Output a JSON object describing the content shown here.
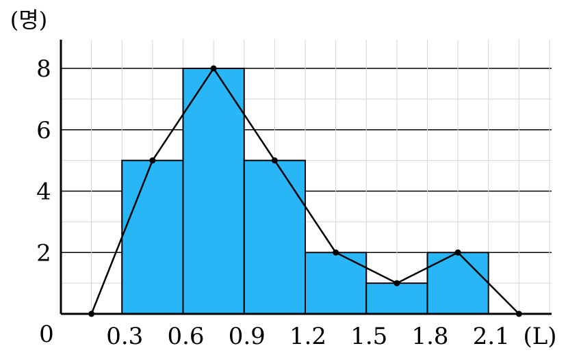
{
  "chart_data": {
    "type": "bar",
    "title": "",
    "ylabel": "(명)",
    "xlabel": "(L)",
    "origin_label": "0",
    "bin_edges": [
      0.3,
      0.6,
      0.9,
      1.2,
      1.5,
      1.8,
      2.1
    ],
    "bin_edge_labels": [
      "0.3",
      "0.6",
      "0.9",
      "1.2",
      "1.5",
      "1.8",
      "2.1"
    ],
    "values": [
      5,
      8,
      5,
      2,
      1,
      2
    ],
    "polygon_points": [
      {
        "x": 0.15,
        "y": 0
      },
      {
        "x": 0.45,
        "y": 5
      },
      {
        "x": 0.75,
        "y": 8
      },
      {
        "x": 1.05,
        "y": 5
      },
      {
        "x": 1.35,
        "y": 2
      },
      {
        "x": 1.65,
        "y": 1
      },
      {
        "x": 1.95,
        "y": 2
      },
      {
        "x": 2.25,
        "y": 0
      }
    ],
    "yticks": [
      2,
      4,
      6,
      8
    ],
    "ytick_labels": [
      "2",
      "4",
      "6",
      "8"
    ],
    "ylim": [
      0,
      8.5
    ],
    "xlim": [
      0,
      2.4
    ],
    "grid": true,
    "bar_color": "#29b6f6"
  }
}
